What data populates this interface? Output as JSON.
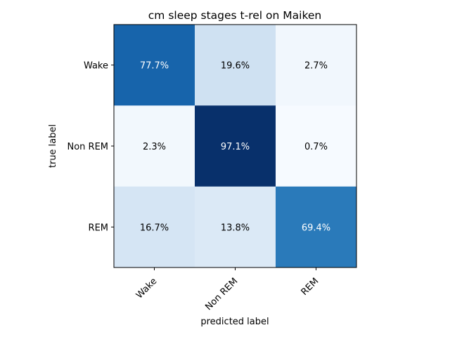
{
  "chart_data": {
    "type": "heatmap",
    "title": "cm sleep stages t-rel on Maiken",
    "xlabel": "predicted label",
    "ylabel": "true label",
    "x_categories": [
      "Wake",
      "Non REM",
      "REM"
    ],
    "y_categories": [
      "Wake",
      "Non REM",
      "REM"
    ],
    "values": [
      [
        77.7,
        19.6,
        2.7
      ],
      [
        2.3,
        97.1,
        0.7
      ],
      [
        16.7,
        13.8,
        69.4
      ]
    ],
    "cell_labels": [
      [
        "77.7%",
        "19.6%",
        "2.7%"
      ],
      [
        "2.3%",
        "97.1%",
        "0.7%"
      ],
      [
        "16.7%",
        "13.8%",
        "69.4%"
      ]
    ],
    "colormap": "Blues",
    "value_range": [
      0,
      97.1
    ],
    "grid": false,
    "legend": "none"
  }
}
